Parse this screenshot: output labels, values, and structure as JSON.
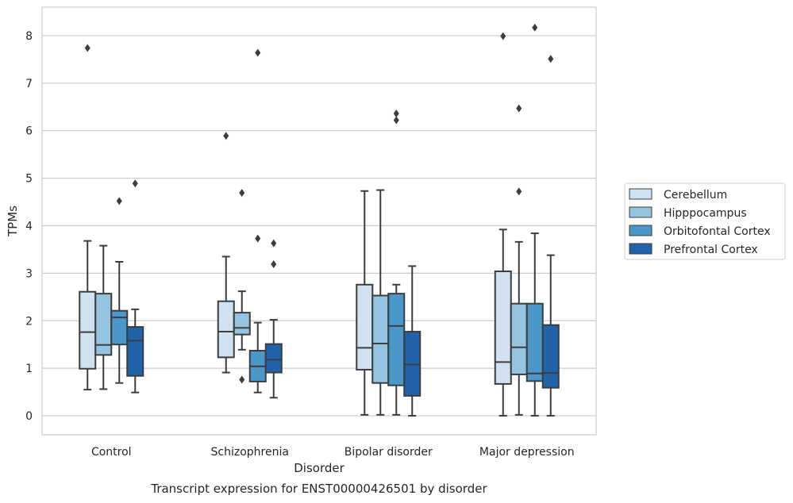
{
  "chart_data": {
    "type": "box",
    "title": "",
    "caption": "Transcript expression for ENST00000426501 by disorder",
    "xlabel": "Disorder",
    "ylabel": "TPMs",
    "ylim": [
      -0.4,
      8.6
    ],
    "yticks": [
      0,
      1,
      2,
      3,
      4,
      5,
      6,
      7,
      8
    ],
    "grid": "horizontal",
    "legend_position": "right",
    "categories": [
      "Control",
      "Schizophrenia",
      "Bipolar disorder",
      "Major depression"
    ],
    "series": [
      {
        "name": "Cerebellum",
        "color": "#d0e1f2",
        "boxes": [
          {
            "whislo": 0.55,
            "q1": 0.99,
            "med": 1.76,
            "q3": 2.61,
            "whishi": 3.68,
            "fliers": [
              7.74
            ]
          },
          {
            "whislo": 0.91,
            "q1": 1.23,
            "med": 1.77,
            "q3": 2.41,
            "whishi": 3.35,
            "fliers": [
              5.89
            ]
          },
          {
            "whislo": 0.02,
            "q1": 0.97,
            "med": 1.43,
            "q3": 2.76,
            "whishi": 4.73,
            "fliers": []
          },
          {
            "whislo": 0.0,
            "q1": 0.67,
            "med": 1.13,
            "q3": 3.04,
            "whishi": 3.92,
            "fliers": [
              7.99
            ]
          }
        ]
      },
      {
        "name": "Hipppocampus",
        "color": "#94c4df",
        "boxes": [
          {
            "whislo": 0.56,
            "q1": 1.28,
            "med": 1.49,
            "q3": 2.57,
            "whishi": 3.58,
            "fliers": []
          },
          {
            "whislo": 1.39,
            "q1": 1.71,
            "med": 1.85,
            "q3": 2.17,
            "whishi": 2.62,
            "fliers": [
              4.69,
              0.76
            ]
          },
          {
            "whislo": 0.02,
            "q1": 0.69,
            "med": 1.52,
            "q3": 2.53,
            "whishi": 4.75,
            "fliers": []
          },
          {
            "whislo": 0.02,
            "q1": 0.87,
            "med": 1.44,
            "q3": 2.36,
            "whishi": 3.66,
            "fliers": [
              6.47,
              4.72
            ]
          }
        ]
      },
      {
        "name": "Orbitofontal Cortex",
        "color": "#4a98c9",
        "boxes": [
          {
            "whislo": 0.69,
            "q1": 1.5,
            "med": 2.07,
            "q3": 2.21,
            "whishi": 3.24,
            "fliers": [
              4.52
            ]
          },
          {
            "whislo": 0.49,
            "q1": 0.72,
            "med": 1.04,
            "q3": 1.37,
            "whishi": 1.96,
            "fliers": [
              7.64,
              3.73
            ]
          },
          {
            "whislo": 0.02,
            "q1": 0.64,
            "med": 1.89,
            "q3": 2.57,
            "whishi": 2.76,
            "fliers": [
              6.36,
              6.22
            ]
          },
          {
            "whislo": 0.0,
            "q1": 0.73,
            "med": 0.89,
            "q3": 2.36,
            "whishi": 3.84,
            "fliers": [
              8.17
            ]
          }
        ]
      },
      {
        "name": "Prefrontal Cortex",
        "color": "#2163aa",
        "boxes": [
          {
            "whislo": 0.49,
            "q1": 0.84,
            "med": 1.58,
            "q3": 1.87,
            "whishi": 2.24,
            "fliers": [
              4.89
            ]
          },
          {
            "whislo": 0.38,
            "q1": 0.91,
            "med": 1.18,
            "q3": 1.51,
            "whishi": 2.02,
            "fliers": [
              3.63,
              3.19
            ]
          },
          {
            "whislo": 0.0,
            "q1": 0.42,
            "med": 1.08,
            "q3": 1.77,
            "whishi": 3.15,
            "fliers": []
          },
          {
            "whislo": 0.0,
            "q1": 0.59,
            "med": 0.9,
            "q3": 1.91,
            "whishi": 3.38,
            "fliers": [
              7.51
            ]
          }
        ]
      }
    ]
  }
}
